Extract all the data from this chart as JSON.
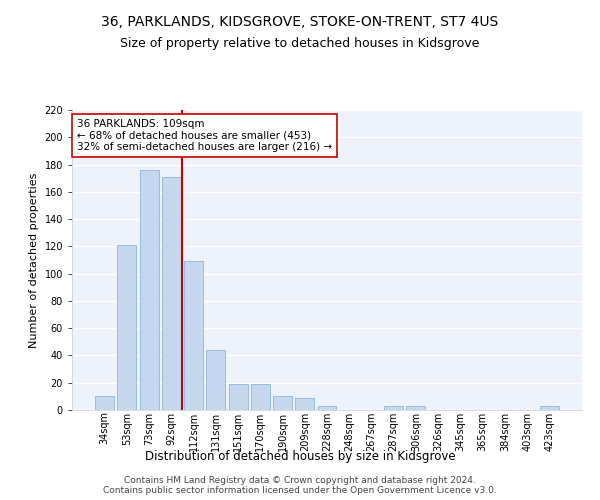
{
  "title": "36, PARKLANDS, KIDSGROVE, STOKE-ON-TRENT, ST7 4US",
  "subtitle": "Size of property relative to detached houses in Kidsgrove",
  "xlabel": "Distribution of detached houses by size in Kidsgrove",
  "ylabel": "Number of detached properties",
  "categories": [
    "34sqm",
    "53sqm",
    "73sqm",
    "92sqm",
    "112sqm",
    "131sqm",
    "151sqm",
    "170sqm",
    "190sqm",
    "209sqm",
    "228sqm",
    "248sqm",
    "267sqm",
    "287sqm",
    "306sqm",
    "326sqm",
    "345sqm",
    "365sqm",
    "384sqm",
    "403sqm",
    "423sqm"
  ],
  "bar_values": [
    10,
    121,
    176,
    171,
    109,
    44,
    19,
    19,
    10,
    9,
    3,
    0,
    0,
    3,
    3,
    0,
    0,
    0,
    0,
    0,
    3
  ],
  "bar_color": "#c5d8f0",
  "bar_edge_color": "#7aafd4",
  "vline_index": 4,
  "annotation_line1": "36 PARKLANDS: 109sqm",
  "annotation_line2": "← 68% of detached houses are smaller (453)",
  "annotation_line3": "32% of semi-detached houses are larger (216) →",
  "vline_color": "#cc0000",
  "annotation_box_color": "#cc0000",
  "ylim": [
    0,
    220
  ],
  "yticks": [
    0,
    20,
    40,
    60,
    80,
    100,
    120,
    140,
    160,
    180,
    200,
    220
  ],
  "background_color": "#eef2fa",
  "grid_color": "#ffffff",
  "footer_line1": "Contains HM Land Registry data © Crown copyright and database right 2024.",
  "footer_line2": "Contains public sector information licensed under the Open Government Licence v3.0.",
  "title_fontsize": 10,
  "subtitle_fontsize": 9,
  "xlabel_fontsize": 8.5,
  "ylabel_fontsize": 8,
  "tick_fontsize": 7,
  "annotation_fontsize": 7.5,
  "footer_fontsize": 6.5
}
